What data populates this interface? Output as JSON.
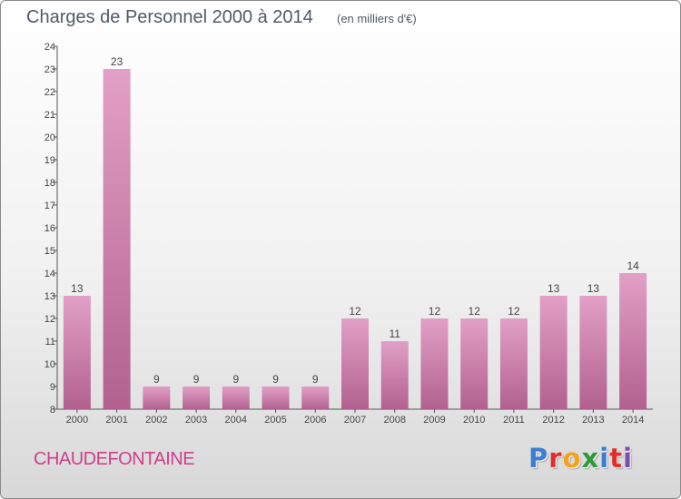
{
  "title": "Charges de Personnel 2000 à 2014",
  "subtitle": "(en milliers d'€)",
  "commune": "CHAUDEFONTAINE",
  "logo": {
    "text": "Proxiti",
    "letter_colors": [
      "#3a7fd0",
      "#e0302b",
      "#f2a21b",
      "#2e9a3a",
      "#3a7fd0",
      "#e0302b",
      "#7a4fb0"
    ]
  },
  "colors": {
    "bar": "#e2a0c6",
    "bar_dark": "#b2618f",
    "commune_text": "#d13d8c"
  },
  "chart_data": {
    "type": "bar",
    "categories": [
      "2000",
      "2001",
      "2002",
      "2003",
      "2004",
      "2005",
      "2006",
      "2007",
      "2008",
      "2009",
      "2010",
      "2011",
      "2012",
      "2013",
      "2014"
    ],
    "values": [
      13,
      23,
      9,
      9,
      9,
      9,
      9,
      12,
      11,
      12,
      12,
      12,
      13,
      13,
      14
    ],
    "ylim": [
      8,
      24
    ],
    "yticks": [
      8,
      9,
      10,
      11,
      12,
      13,
      14,
      15,
      16,
      17,
      18,
      19,
      20,
      21,
      22,
      23,
      24
    ],
    "title": "Charges de Personnel 2000 à 2014",
    "xlabel": "",
    "ylabel": "",
    "grid": false,
    "data_labels": true
  }
}
